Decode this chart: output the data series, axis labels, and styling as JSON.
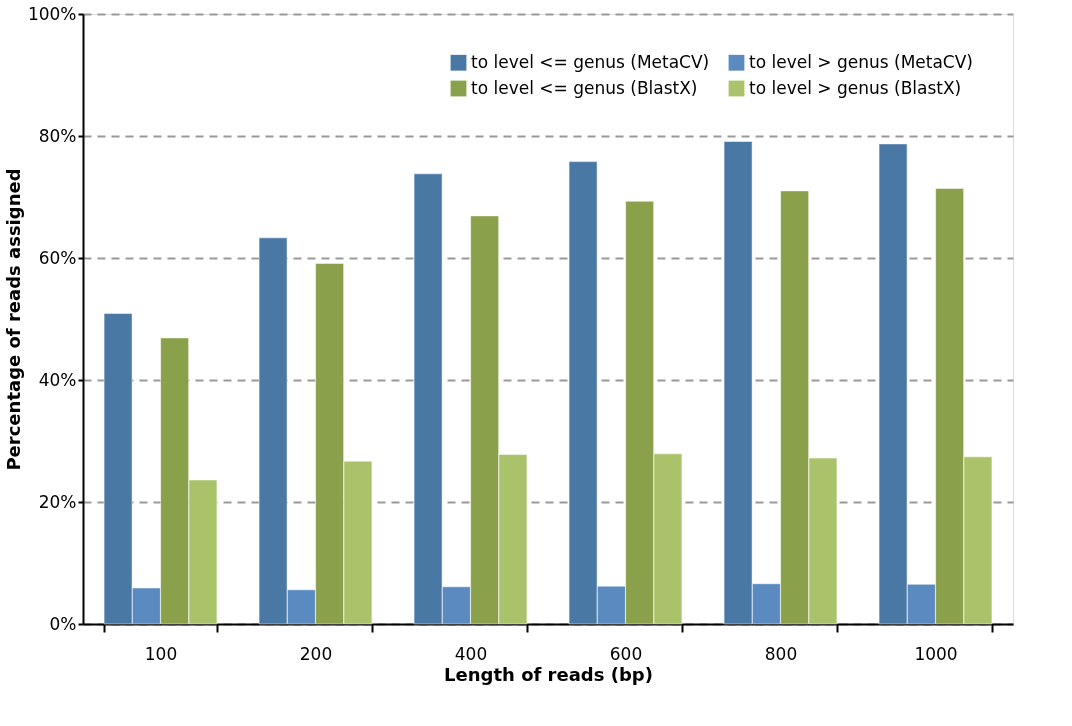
{
  "chart_data": {
    "type": "bar",
    "xlabel": "Length of reads (bp)",
    "ylabel": "Percentage of reads assigned",
    "categories": [
      "100",
      "200",
      "400",
      "600",
      "800",
      "1000"
    ],
    "series": [
      {
        "name": "to level <= genus (MetaCV)",
        "color": "#4a78a5",
        "values": [
          50.9,
          63.3,
          73.8,
          75.8,
          79.1,
          78.7
        ]
      },
      {
        "name": "to level > genus (MetaCV)",
        "color": "#5a8abf",
        "values": [
          5.9,
          5.6,
          6.1,
          6.2,
          6.6,
          6.5
        ]
      },
      {
        "name": "to level <= genus (BlastX)",
        "color": "#8ba04b",
        "values": [
          46.9,
          59.1,
          66.9,
          69.3,
          71.0,
          71.4
        ]
      },
      {
        "name": "to level > genus (BlastX)",
        "color": "#aac36a",
        "values": [
          23.6,
          26.7,
          27.8,
          27.9,
          27.2,
          27.4
        ]
      }
    ],
    "ylim": [
      0,
      100
    ],
    "yticks": [
      {
        "value": 0,
        "label": "0%"
      },
      {
        "value": 20,
        "label": "20%"
      },
      {
        "value": 40,
        "label": "40%"
      },
      {
        "value": 60,
        "label": "60%"
      },
      {
        "value": 80,
        "label": "80%"
      },
      {
        "value": 100,
        "label": "100%"
      }
    ],
    "grid": "y",
    "legend": "top right"
  }
}
